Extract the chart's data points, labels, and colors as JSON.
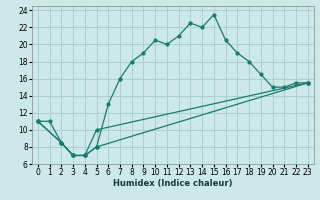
{
  "xlabel": "Humidex (Indice chaleur)",
  "background_color": "#cce8e8",
  "grid_color": "#aad0d0",
  "line_color": "#1a7a6e",
  "xlim": [
    -0.5,
    23.5
  ],
  "ylim": [
    6,
    24.5
  ],
  "xticks": [
    0,
    1,
    2,
    3,
    4,
    5,
    6,
    7,
    8,
    9,
    10,
    11,
    12,
    13,
    14,
    15,
    16,
    17,
    18,
    19,
    20,
    21,
    22,
    23
  ],
  "yticks": [
    6,
    8,
    10,
    12,
    14,
    16,
    18,
    20,
    22,
    24
  ],
  "series1_x": [
    0,
    1,
    2,
    3,
    4,
    5,
    6,
    7,
    8,
    9,
    10,
    11,
    12,
    13,
    14,
    15,
    16,
    17,
    18,
    19,
    20,
    21,
    22,
    23
  ],
  "series1_y": [
    11,
    11,
    8.5,
    7,
    7,
    8,
    13,
    16,
    18,
    19,
    20.5,
    20,
    21,
    22.5,
    22,
    23.5,
    20.5,
    19,
    18,
    16.5,
    15,
    15,
    15.5,
    15.5
  ],
  "series2_x": [
    0,
    2,
    3,
    4,
    5,
    23
  ],
  "series2_y": [
    11,
    8.5,
    7,
    7,
    8,
    15.5
  ],
  "series3_x": [
    0,
    2,
    3,
    4,
    5,
    23
  ],
  "series3_y": [
    11,
    8.5,
    7,
    7,
    10,
    15.5
  ]
}
